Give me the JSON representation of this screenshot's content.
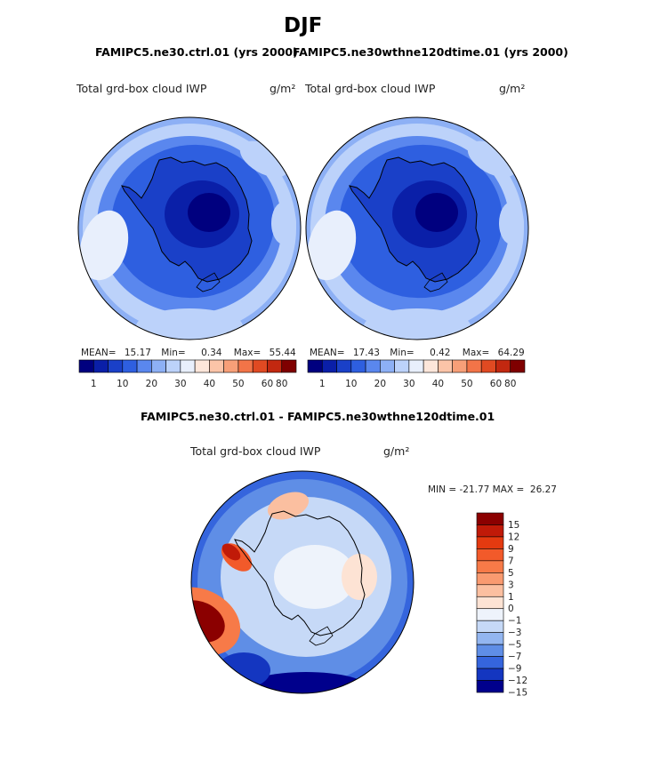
{
  "figure": {
    "season": "DJF",
    "left_case": "FAMIPC5.ne30.ctrl.01 (yrs 2000)",
    "right_case": "FAMIPC5.ne30wthne120dtime.01 (yrs 2000)",
    "diff_title": "FAMIPC5.ne30.ctrl.01 - FAMIPC5.ne30wthne120dtime.01"
  },
  "chart_data": [
    {
      "type": "heatmap",
      "name": "ctrl",
      "variable": "Total grd-box cloud IWP",
      "units": "g/m²",
      "mean_label": "MEAN=",
      "mean": "15.17",
      "min_label": "Min=",
      "min": "0.34",
      "max_label": "Max=",
      "max": "55.44",
      "levels": [
        1,
        10,
        20,
        30,
        40,
        50,
        60,
        80
      ],
      "colorbar_colors": [
        "#00007f",
        "#0a1fa8",
        "#1a40c8",
        "#2e5fe0",
        "#5a87ee",
        "#8db0f5",
        "#bcd2fa",
        "#e8effc",
        "#fde6da",
        "#fbc4a8",
        "#f79f78",
        "#f27448",
        "#e04a22",
        "#c22810",
        "#7f0000"
      ]
    },
    {
      "type": "heatmap",
      "name": "test",
      "variable": "Total grd-box cloud IWP",
      "units": "g/m²",
      "mean_label": "MEAN=",
      "mean": "17.43",
      "min_label": "Min=",
      "min": "0.42",
      "max_label": "Max=",
      "max": "64.29",
      "levels": [
        1,
        10,
        20,
        30,
        40,
        50,
        60,
        80
      ],
      "colorbar_colors": [
        "#00007f",
        "#0a1fa8",
        "#1a40c8",
        "#2e5fe0",
        "#5a87ee",
        "#8db0f5",
        "#bcd2fa",
        "#e8effc",
        "#fde6da",
        "#fbc4a8",
        "#f79f78",
        "#f27448",
        "#e04a22",
        "#c22810",
        "#7f0000"
      ]
    },
    {
      "type": "heatmap",
      "name": "difference",
      "variable": "Total grd-box cloud IWP",
      "units": "g/m²",
      "minmax_label": "MIN = -21.77 MAX =  26.27",
      "min": -21.77,
      "max": 26.27,
      "levels": [
        "15",
        "12",
        "9",
        "7",
        "5",
        "3",
        "1",
        "0",
        "−1",
        "−3",
        "−5",
        "−7",
        "−9",
        "−12",
        "−15"
      ],
      "colorbar_colors": [
        "#8b0000",
        "#c01a08",
        "#e43a10",
        "#f25a2a",
        "#f77a48",
        "#f99a70",
        "#fbbfa0",
        "#fde3d4",
        "#eef3fb",
        "#c6d9f7",
        "#93b6f0",
        "#5f8ee6",
        "#3565dd",
        "#1436c0",
        "#00008c"
      ]
    }
  ]
}
